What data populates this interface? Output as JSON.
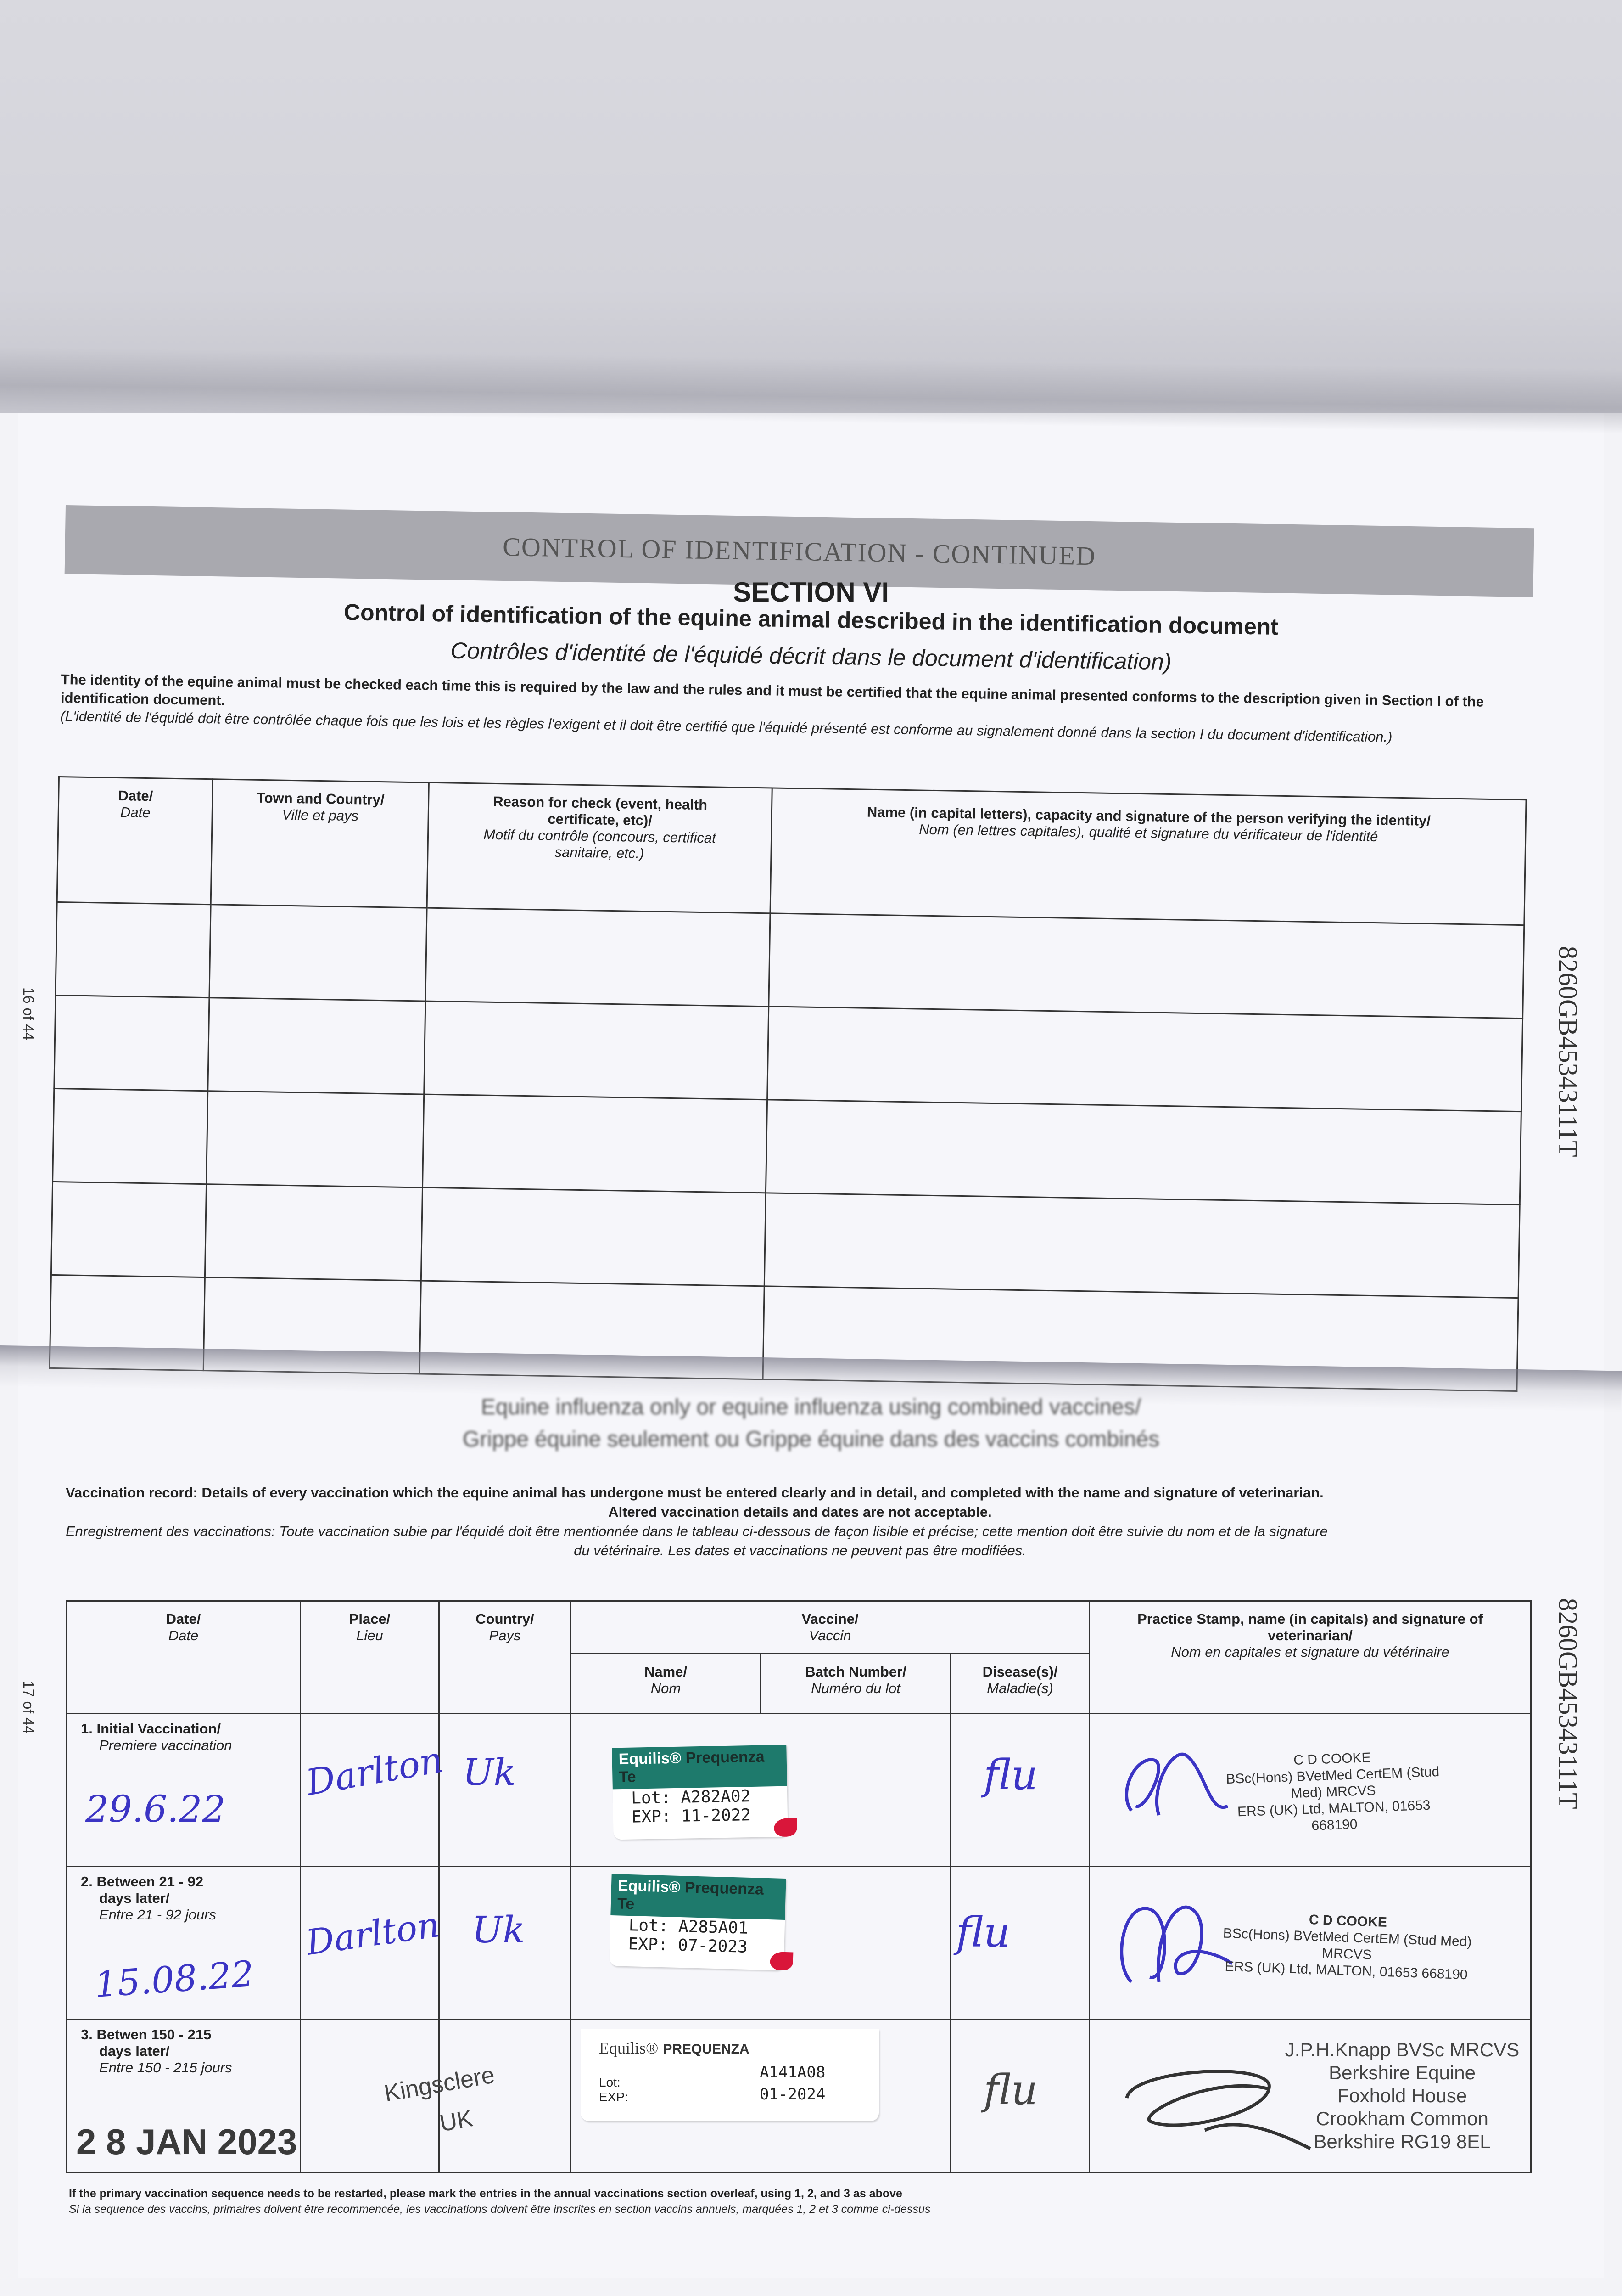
{
  "header_band": "CONTROL OF IDENTIFICATION - CONTINUED",
  "section": "SECTION VI",
  "title_en": "Control of identification of the equine animal described in the identification document",
  "title_fr": "Contrôles d'identité de l'équidé décrit dans le document d'identification)",
  "intro_en": "The identity of the equine animal must be checked each time this is required by the law and the rules and it must be certified that the equine animal presented conforms to the description given in Section I of the identification document.",
  "intro_fr": "(L'identité de l'équidé doit être contrôlée chaque fois que les lois et les règles l'exigent et il doit être certifié que l'équidé présenté est conforme au signalement donné dans la section I du document d'identification.)",
  "identity_table": {
    "headers": [
      {
        "en": "Date/",
        "fr": "Date"
      },
      {
        "en": "Town and Country/",
        "fr": "Ville et pays"
      },
      {
        "en": "Reason for check (event, health certificate, etc)/",
        "fr": "Motif du contrôle (concours, certificat sanitaire, etc.)"
      },
      {
        "en": "Name (in capital letters), capacity and signature of the person verifying the identity/",
        "fr": "Nom (en lettres capitales), qualité et signature du vérificateur de l'identité"
      }
    ]
  },
  "page_left_top": "16 of 44",
  "page_left_bottom": "17 of 44",
  "serial_top": "8260GB45343111T",
  "serial_bottom": "8260GB45343111T",
  "flu_heading_en": "Equine influenza only or equine influenza using combined vaccines/",
  "flu_heading_fr": "Grippe équine seulement ou Grippe équine dans des vaccins combinés",
  "record_en_1": "Vaccination record: Details of every vaccination which the equine animal has undergone must be entered clearly and in detail, and completed with the name and signature of veterinarian.",
  "record_en_2": "Altered vaccination details and dates are not acceptable.",
  "record_fr_1": "Enregistrement des vaccinations: Toute vaccination subie par l'équidé doit être mentionnée dans le tableau ci-dessous de façon lisible et précise; cette mention doit être suivie du nom et de la signature",
  "record_fr_2": "du vétérinaire. Les dates et vaccinations ne peuvent pas être modifiées.",
  "vaccination_table": {
    "headers": {
      "date": {
        "en": "Date/",
        "fr": "Date"
      },
      "place": {
        "en": "Place/",
        "fr": "Lieu"
      },
      "country": {
        "en": "Country/",
        "fr": "Pays"
      },
      "vaccine": {
        "en": "Vaccine/",
        "fr": "Vaccin"
      },
      "name": {
        "en": "Name/",
        "fr": "Nom"
      },
      "batch": {
        "en": "Batch Number/",
        "fr": "Numéro du lot"
      },
      "disease": {
        "en": "Disease(s)/",
        "fr": "Maladie(s)"
      },
      "vet": {
        "en": "Practice Stamp, name (in capitals) and signature of veterinarian/",
        "fr": "Nom en capitales et signature du vétérinaire"
      }
    },
    "rows": [
      {
        "stage_en": "1. Initial Vaccination/",
        "stage_fr": "Premiere vaccination",
        "date": "29.6.22",
        "place": "Darlton",
        "country": "Uk",
        "label": {
          "brand": "Equilis®",
          "product": "Prequenza Te",
          "lot_label": "Lot:",
          "lot": "A282A02",
          "exp_label": "EXP:",
          "exp": "11-2022"
        },
        "disease": "flu",
        "vet": [
          "C D COOKE",
          "BSc(Hons) BVetMed CertEM (Stud Med) MRCVS",
          "ERS (UK) Ltd, MALTON, 01653 668190"
        ]
      },
      {
        "stage_en": "2. Between 21 - 92",
        "stage_en_2": "days later/",
        "stage_fr": "Entre 21 - 92 jours",
        "date": "15.08.22",
        "place": "Darlton",
        "country": "Uk",
        "label": {
          "brand": "Equilis®",
          "product": "Prequenza Te",
          "lot_label": "Lot:",
          "lot": "A285A01",
          "exp_label": "EXP:",
          "exp": "07-2023"
        },
        "disease": "flu",
        "vet": [
          "C D COOKE",
          "BSc(Hons) BVetMed CertEM (Stud Med) MRCVS",
          "ERS (UK) Ltd, MALTON, 01653 668190"
        ]
      },
      {
        "stage_en": "3. Betwen 150 - 215",
        "stage_en_2": "days later/",
        "stage_fr": "Entre 150 - 215 jours",
        "date": "2 8 JAN 2023",
        "place": "Kingsclere",
        "country": "UK",
        "label": {
          "brand": "Equilis®",
          "product": "PREQUENZA",
          "lot_label": "Lot:",
          "lot": "A141A08",
          "exp_label": "EXP:",
          "exp": "01-2024"
        },
        "disease": "flu",
        "vet": [
          "J.P.H.Knapp BVSc MRCVS",
          "Berkshire Equine",
          "Foxhold House",
          "Crookham Common",
          "Berkshire RG19 8EL"
        ]
      }
    ]
  },
  "footer_en": "If the primary vaccination sequence needs to be restarted, please mark the entries in the annual vaccinations section overleaf, using 1, 2, and 3 as above",
  "footer_fr": "Si la sequence des vaccins, primaires doivent être recommencée, les vaccinations doivent être inscrites en section vaccins annuels, marquées 1, 2 et 3 comme ci-dessus",
  "colors": {
    "ink_blue": "#3b34c4",
    "label_green": "#1e7a6c",
    "label_red": "#d9163a"
  }
}
